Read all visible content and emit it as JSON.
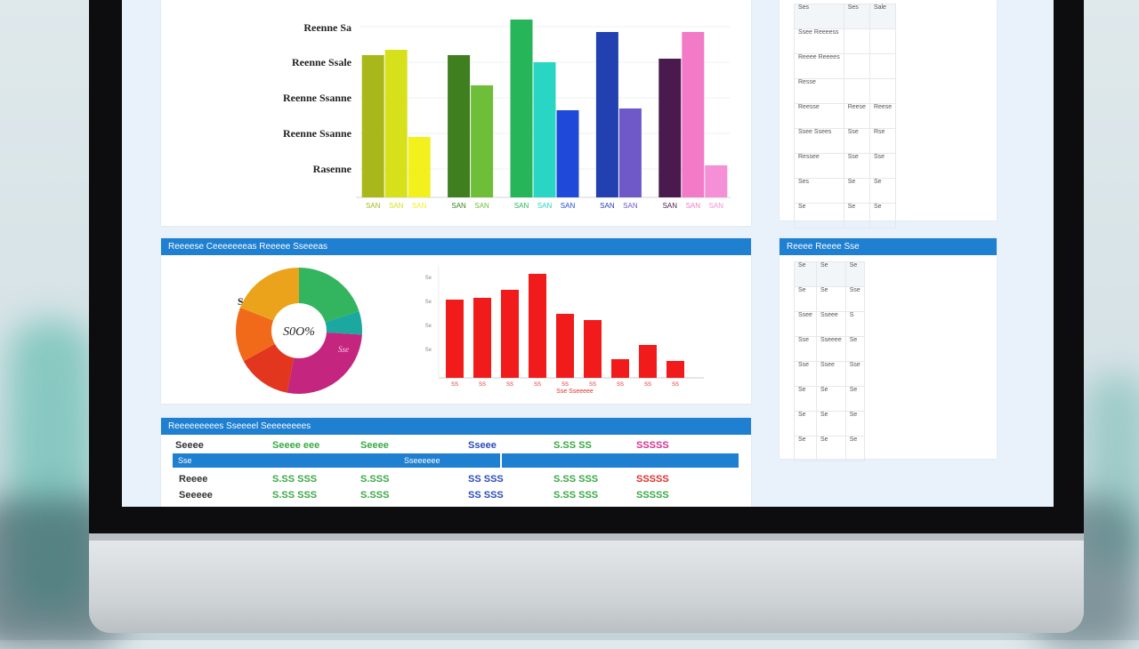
{
  "colors": {
    "accent": "#1f7fd0",
    "screen_bg": "#e9f2fa",
    "green_text": "#3aa845",
    "blue_text": "#2b4bb8",
    "pink_text": "#d8338f",
    "red_text": "#e0312c"
  },
  "top_chart": {
    "y_labels": [
      "Reenne Sa",
      "Reenne Ssale",
      "Reenne Ssanne",
      "Reenne Ssanne",
      "Rasenne"
    ],
    "groups": [
      {
        "label": "SAN",
        "bars": [
          {
            "value": 80,
            "color": "#a8b81a"
          },
          {
            "value": 83,
            "color": "#d6e11c"
          },
          {
            "value": 34,
            "color": "#f2f01d"
          }
        ],
        "tick_labels": [
          "SAN",
          "SAN",
          "SAN"
        ]
      },
      {
        "label": "SAN",
        "bars": [
          {
            "value": 80,
            "color": "#3f7f1f"
          },
          {
            "value": 63,
            "color": "#6fbe3a"
          }
        ],
        "tick_labels": [
          "SAN",
          "SAN"
        ]
      },
      {
        "label": "SAN",
        "bars": [
          {
            "value": 100,
            "color": "#27b55a"
          },
          {
            "value": 76,
            "color": "#29d6c3"
          },
          {
            "value": 49,
            "color": "#1f49d8"
          }
        ],
        "tick_labels": [
          "SAN",
          "SAN",
          "SAN"
        ]
      },
      {
        "label": "SAN",
        "bars": [
          {
            "value": 93,
            "color": "#2340b0"
          },
          {
            "value": 50,
            "color": "#6f58c8"
          }
        ],
        "tick_labels": [
          "SAN",
          "SAN"
        ]
      },
      {
        "label": "SAN",
        "bars": [
          {
            "value": 78,
            "color": "#4a1a4f"
          },
          {
            "value": 93,
            "color": "#f27ac7"
          },
          {
            "value": 18,
            "color": "#f58fd6"
          }
        ],
        "tick_labels": [
          "SAN",
          "SAN",
          "SAN"
        ]
      }
    ]
  },
  "side_table_1": {
    "rows": [
      [
        "Ses",
        "Ses",
        "Sale"
      ],
      [
        "Ssee Reeeess",
        "",
        ""
      ],
      [
        "Reeee Reeees",
        "",
        ""
      ],
      [
        "Resse",
        "",
        ""
      ],
      [
        "Reesse",
        "Reese",
        "Reese"
      ],
      [
        "Ssee Ssees",
        "Sse",
        "Rse"
      ],
      [
        "Ressee",
        "Sse",
        "Sse"
      ],
      [
        "Ses",
        "Se",
        "Se"
      ],
      [
        "Se",
        "Se",
        "Se"
      ]
    ]
  },
  "middle_section": {
    "header": "Reeeese Ceeeeeeeas Reeeee Sseeeas"
  },
  "pie": {
    "title": "Sees",
    "center_label": "S0O%",
    "slice_label": "Sse",
    "slices": [
      {
        "value": 20,
        "color": "#32b55e"
      },
      {
        "value": 6,
        "color": "#1ba8a0"
      },
      {
        "value": 27,
        "color": "#c3257f"
      },
      {
        "value": 14,
        "color": "#e2361e"
      },
      {
        "value": 14,
        "color": "#f06a1a"
      },
      {
        "value": 19,
        "color": "#eca31c"
      }
    ]
  },
  "red_chart": {
    "values": [
      88,
      90,
      99,
      117,
      72,
      65,
      21,
      37,
      19
    ],
    "color": "#f21b1b",
    "y_ticks": [
      "Se",
      "Se",
      "Se",
      "Se"
    ],
    "x_labels": [
      "SS",
      "SS",
      "SS",
      "SS",
      "SS",
      "SS",
      "SS",
      "SS",
      "SS"
    ],
    "x_title": "Sse Sseeeee"
  },
  "side_table_2": {
    "header": "Reeee Reeee Sse",
    "rows": [
      [
        "Se",
        "Se",
        "Se"
      ],
      [
        "Se",
        "Se",
        "Sse"
      ],
      [
        "Ssee",
        "Sseee",
        "S"
      ],
      [
        "Sse",
        "Sseeee",
        "Se"
      ],
      [
        "Sse",
        "Ssee",
        "Sse"
      ],
      [
        "Se",
        "Se",
        "Se"
      ],
      [
        "Se",
        "Se",
        "Se"
      ],
      [
        "Se",
        "Se",
        "Se"
      ]
    ]
  },
  "bottom_table": {
    "header": "Reeeeeeeees Sseeeel Seeeeeeees",
    "header_row": [
      "Seeee",
      "Seeee eee",
      "Seeee",
      "Sseee",
      "S.SS SS",
      "SSSSS"
    ],
    "subheader_row": [
      "Sse",
      "Sseeeeee"
    ],
    "rows": [
      [
        "Reeee",
        "S.SS SSS",
        "S.SSS",
        "SS SSS",
        "S.SS SSS",
        "SSSSS"
      ],
      [
        "Seeeee",
        "S.SS SSS",
        "S.SSS",
        "SS SSS",
        "S.SS SSS",
        "SSSSS"
      ]
    ]
  }
}
